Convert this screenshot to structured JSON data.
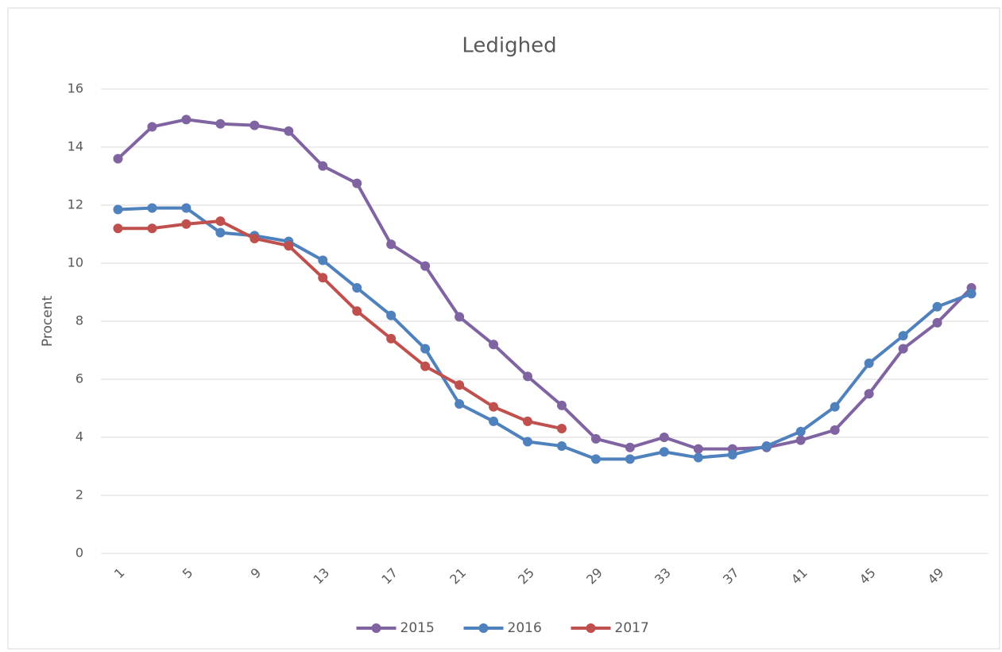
{
  "chart_data": {
    "type": "line",
    "title": "Ledighed",
    "y_label": "Procent",
    "categories": [
      "1",
      null,
      "5",
      null,
      "9",
      null,
      "13",
      null,
      "17",
      null,
      "21",
      null,
      "25",
      null,
      "29",
      null,
      "33",
      null,
      "37",
      null,
      "41",
      null,
      "45",
      null,
      "49",
      null
    ],
    "series": [
      {
        "name": "2015",
        "color": "#8064a2",
        "values": [
          13.6,
          14.7,
          14.95,
          14.8,
          14.75,
          14.55,
          13.35,
          12.75,
          10.65,
          9.9,
          8.15,
          7.2,
          6.1,
          5.1,
          3.95,
          3.65,
          4.0,
          3.6,
          3.6,
          3.65,
          3.9,
          4.25,
          5.5,
          7.05,
          7.95,
          9.15
        ]
      },
      {
        "name": "2016",
        "color": "#4f81bd",
        "values": [
          11.85,
          11.9,
          11.9,
          11.05,
          10.95,
          10.75,
          10.1,
          9.15,
          8.2,
          7.05,
          5.15,
          4.55,
          3.85,
          3.7,
          3.25,
          3.25,
          3.5,
          3.3,
          3.4,
          3.7,
          4.2,
          5.05,
          6.55,
          7.5,
          8.5,
          8.95
        ]
      },
      {
        "name": "2017",
        "color": "#c0504d",
        "values": [
          11.2,
          11.2,
          11.35,
          11.45,
          10.85,
          10.6,
          9.5,
          8.35,
          7.4,
          6.45,
          5.8,
          5.05,
          4.55,
          4.3,
          null,
          null,
          null,
          null,
          null,
          null,
          null,
          null,
          null,
          null,
          null,
          null
        ]
      }
    ],
    "ylim": [
      0,
      16
    ],
    "yticks": [
      0,
      2,
      4,
      6,
      8,
      10,
      12,
      14,
      16
    ],
    "grid": true,
    "legend": "bottom"
  }
}
